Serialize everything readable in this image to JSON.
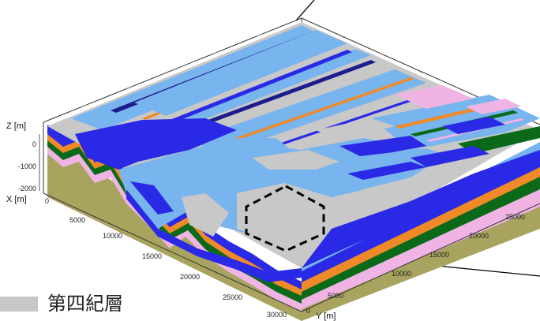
{
  "axes": {
    "z_label": "Z [m]",
    "z_ticks": [
      "0",
      "-1000",
      "-2000"
    ],
    "x_label": "X [m]",
    "x_ticks": [
      "0",
      "5000",
      "10000",
      "15000",
      "20000",
      "25000",
      "30000"
    ],
    "y_label": "Y [m]",
    "y_ticks": [
      "0",
      "5000",
      "10000",
      "15000",
      "20000",
      "25000"
    ]
  },
  "legend": {
    "label": "第四紀層",
    "color": "#c8c8c8"
  },
  "colors": {
    "quaternary": "#c8c8c8",
    "light_blue": "#78b4ee",
    "blue": "#2a2ae6",
    "navy": "#1c1c8c",
    "orange": "#f08a28",
    "green": "#0a6a1a",
    "pink": "#f0b4e4",
    "olive": "#a8a460",
    "white": "#ffffff"
  }
}
